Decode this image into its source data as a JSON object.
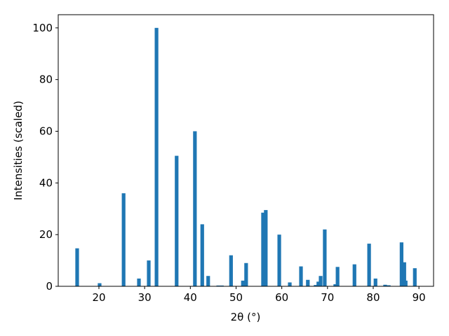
{
  "chart_data": {
    "type": "bar",
    "x": [
      15.24,
      20.15,
      25.4,
      28.75,
      30.9,
      32.6,
      37.0,
      41.0,
      42.6,
      43.9,
      46.1,
      46.9,
      48.9,
      51.5,
      52.2,
      55.9,
      56.5,
      59.45,
      61.75,
      64.2,
      65.7,
      67.4,
      68.0,
      68.5,
      69.4,
      71.7,
      72.2,
      75.9,
      79.1,
      80.5,
      82.6,
      83.4,
      86.2,
      86.8,
      87.1,
      89.1
    ],
    "values": [
      14.7,
      1.2,
      36,
      3,
      10,
      100,
      50.5,
      60,
      24,
      4,
      0.3,
      0.3,
      12,
      2.2,
      9,
      28.5,
      29.5,
      20,
      1.5,
      7.7,
      2.5,
      0.5,
      1.8,
      4,
      22,
      0.8,
      7.5,
      8.5,
      16.5,
      3,
      0.6,
      0.4,
      17,
      9.3,
      2.2,
      7
    ],
    "color": "#1f77b4",
    "xlabel": "2θ (°)",
    "ylabel": "Intensities (scaled)",
    "xlim": [
      11.1,
      93.2
    ],
    "xticks": [
      20,
      30,
      40,
      50,
      60,
      70,
      80,
      90
    ],
    "ylim": [
      0,
      105.1
    ],
    "yticks": [
      0,
      20,
      40,
      60,
      80,
      100
    ],
    "grid": false
  }
}
